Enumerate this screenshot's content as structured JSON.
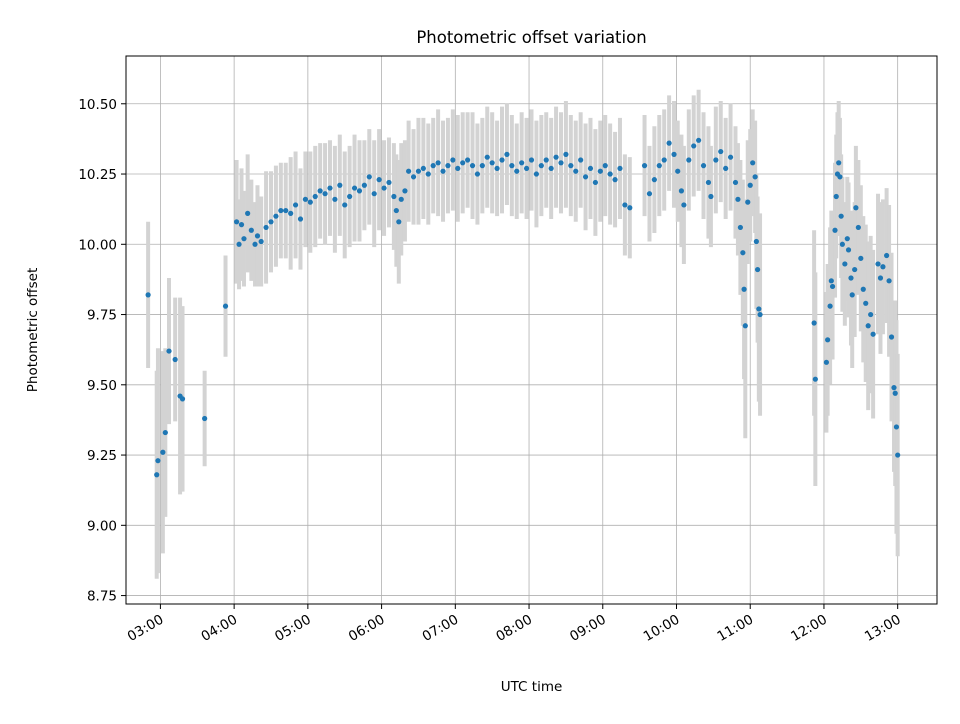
{
  "chart_data": {
    "type": "scatter",
    "title": "Photometric offset variation",
    "xlabel": "UTC time",
    "ylabel": "Photometric offset",
    "xlim": [
      "02:32",
      "13:32"
    ],
    "ylim": [
      8.72,
      10.67
    ],
    "yticks": [
      "8.75",
      "9.00",
      "9.25",
      "9.50",
      "9.75",
      "10.00",
      "10.25",
      "10.50"
    ],
    "xticks": [
      "03:00",
      "04:00",
      "05:00",
      "06:00",
      "07:00",
      "08:00",
      "09:00",
      "10:00",
      "11:00",
      "12:00",
      "13:00"
    ],
    "grid": true,
    "legend": "none",
    "marker_color": "#1f77b4",
    "errorbar_color": "#d3d3d3",
    "series": [
      {
        "points": [
          [
            "02:50",
            9.82,
            0.26
          ],
          [
            "02:57",
            9.18,
            0.37
          ],
          [
            "02:58",
            9.23,
            0.4
          ],
          [
            "03:02",
            9.26,
            0.36
          ],
          [
            "03:04",
            9.33,
            0.3
          ],
          [
            "03:07",
            9.62,
            0.26
          ],
          [
            "03:12",
            9.59,
            0.22
          ],
          [
            "03:16",
            9.46,
            0.35
          ],
          [
            "03:18",
            9.45,
            0.33
          ],
          [
            "03:36",
            9.38,
            0.17
          ],
          [
            "03:53",
            9.78,
            0.18
          ],
          [
            "04:02",
            10.08,
            0.22
          ],
          [
            "04:04",
            10.0,
            0.16
          ],
          [
            "04:06",
            10.07,
            0.2
          ],
          [
            "04:08",
            10.02,
            0.17
          ],
          [
            "04:11",
            10.11,
            0.21
          ],
          [
            "04:14",
            10.05,
            0.18
          ],
          [
            "04:17",
            10.0,
            0.15
          ],
          [
            "04:19",
            10.03,
            0.18
          ],
          [
            "04:22",
            10.01,
            0.16
          ],
          [
            "04:26",
            10.06,
            0.2
          ],
          [
            "04:30",
            10.08,
            0.18
          ],
          [
            "04:34",
            10.1,
            0.18
          ],
          [
            "04:38",
            10.12,
            0.17
          ],
          [
            "04:42",
            10.12,
            0.17
          ],
          [
            "04:46",
            10.11,
            0.2
          ],
          [
            "04:50",
            10.14,
            0.19
          ],
          [
            "04:54",
            10.09,
            0.18
          ],
          [
            "04:58",
            10.16,
            0.17
          ],
          [
            "05:02",
            10.15,
            0.18
          ],
          [
            "05:06",
            10.17,
            0.18
          ],
          [
            "05:10",
            10.19,
            0.17
          ],
          [
            "05:14",
            10.18,
            0.18
          ],
          [
            "05:18",
            10.2,
            0.17
          ],
          [
            "05:22",
            10.16,
            0.19
          ],
          [
            "05:26",
            10.21,
            0.18
          ],
          [
            "05:30",
            10.14,
            0.19
          ],
          [
            "05:34",
            10.17,
            0.18
          ],
          [
            "05:38",
            10.2,
            0.19
          ],
          [
            "05:42",
            10.19,
            0.18
          ],
          [
            "05:46",
            10.21,
            0.16
          ],
          [
            "05:50",
            10.24,
            0.17
          ],
          [
            "05:54",
            10.18,
            0.19
          ],
          [
            "05:58",
            10.23,
            0.18
          ],
          [
            "06:02",
            10.2,
            0.17
          ],
          [
            "06:06",
            10.22,
            0.16
          ],
          [
            "06:10",
            10.17,
            0.19
          ],
          [
            "06:12",
            10.12,
            0.2
          ],
          [
            "06:14",
            10.08,
            0.22
          ],
          [
            "06:16",
            10.16,
            0.2
          ],
          [
            "06:19",
            10.19,
            0.18
          ],
          [
            "06:22",
            10.26,
            0.18
          ],
          [
            "06:26",
            10.24,
            0.17
          ],
          [
            "06:30",
            10.26,
            0.19
          ],
          [
            "06:34",
            10.27,
            0.18
          ],
          [
            "06:38",
            10.25,
            0.18
          ],
          [
            "06:42",
            10.28,
            0.17
          ],
          [
            "06:46",
            10.29,
            0.19
          ],
          [
            "06:50",
            10.26,
            0.18
          ],
          [
            "06:54",
            10.28,
            0.17
          ],
          [
            "06:58",
            10.3,
            0.18
          ],
          [
            "07:02",
            10.27,
            0.19
          ],
          [
            "07:06",
            10.29,
            0.18
          ],
          [
            "07:10",
            10.3,
            0.17
          ],
          [
            "07:14",
            10.28,
            0.19
          ],
          [
            "07:18",
            10.25,
            0.18
          ],
          [
            "07:22",
            10.28,
            0.17
          ],
          [
            "07:26",
            10.31,
            0.18
          ],
          [
            "07:30",
            10.29,
            0.18
          ],
          [
            "07:34",
            10.27,
            0.17
          ],
          [
            "07:38",
            10.3,
            0.19
          ],
          [
            "07:42",
            10.32,
            0.18
          ],
          [
            "07:46",
            10.28,
            0.18
          ],
          [
            "07:50",
            10.26,
            0.17
          ],
          [
            "07:54",
            10.29,
            0.18
          ],
          [
            "07:58",
            10.27,
            0.18
          ],
          [
            "08:02",
            10.3,
            0.18
          ],
          [
            "08:06",
            10.25,
            0.19
          ],
          [
            "08:10",
            10.28,
            0.18
          ],
          [
            "08:14",
            10.3,
            0.17
          ],
          [
            "08:18",
            10.27,
            0.18
          ],
          [
            "08:22",
            10.31,
            0.18
          ],
          [
            "08:26",
            10.29,
            0.18
          ],
          [
            "08:30",
            10.32,
            0.19
          ],
          [
            "08:34",
            10.28,
            0.18
          ],
          [
            "08:38",
            10.26,
            0.18
          ],
          [
            "08:42",
            10.3,
            0.17
          ],
          [
            "08:46",
            10.24,
            0.19
          ],
          [
            "08:50",
            10.27,
            0.18
          ],
          [
            "08:54",
            10.22,
            0.19
          ],
          [
            "08:58",
            10.26,
            0.18
          ],
          [
            "09:02",
            10.28,
            0.18
          ],
          [
            "09:06",
            10.25,
            0.18
          ],
          [
            "09:10",
            10.23,
            0.17
          ],
          [
            "09:14",
            10.27,
            0.18
          ],
          [
            "09:18",
            10.14,
            0.18
          ],
          [
            "09:22",
            10.13,
            0.18
          ],
          [
            "09:34",
            10.28,
            0.18
          ],
          [
            "09:38",
            10.18,
            0.17
          ],
          [
            "09:42",
            10.23,
            0.19
          ],
          [
            "09:46",
            10.28,
            0.18
          ],
          [
            "09:50",
            10.3,
            0.18
          ],
          [
            "09:54",
            10.36,
            0.17
          ],
          [
            "09:58",
            10.32,
            0.19
          ],
          [
            "10:01",
            10.26,
            0.18
          ],
          [
            "10:04",
            10.19,
            0.2
          ],
          [
            "10:06",
            10.14,
            0.21
          ],
          [
            "10:10",
            10.3,
            0.18
          ],
          [
            "10:14",
            10.35,
            0.18
          ],
          [
            "10:18",
            10.37,
            0.18
          ],
          [
            "10:22",
            10.28,
            0.19
          ],
          [
            "10:26",
            10.22,
            0.2
          ],
          [
            "10:28",
            10.17,
            0.18
          ],
          [
            "10:32",
            10.3,
            0.19
          ],
          [
            "10:36",
            10.33,
            0.18
          ],
          [
            "10:40",
            10.27,
            0.18
          ],
          [
            "10:44",
            10.31,
            0.19
          ],
          [
            "10:48",
            10.22,
            0.2
          ],
          [
            "10:50",
            10.16,
            0.2
          ],
          [
            "10:52",
            10.06,
            0.24
          ],
          [
            "10:54",
            9.97,
            0.26
          ],
          [
            "10:55",
            9.84,
            0.32
          ],
          [
            "10:56",
            9.71,
            0.4
          ],
          [
            "10:58",
            10.15,
            0.22
          ],
          [
            "11:00",
            10.21,
            0.2
          ],
          [
            "11:02",
            10.29,
            0.19
          ],
          [
            "11:04",
            10.24,
            0.2
          ],
          [
            "11:05",
            10.01,
            0.24
          ],
          [
            "11:06",
            9.91,
            0.26
          ],
          [
            "11:07",
            9.77,
            0.33
          ],
          [
            "11:08",
            9.75,
            0.36
          ],
          [
            "11:52",
            9.72,
            0.33
          ],
          [
            "11:53",
            9.52,
            0.38
          ],
          [
            "12:02",
            9.58,
            0.25
          ],
          [
            "12:03",
            9.66,
            0.27
          ],
          [
            "12:05",
            9.78,
            0.28
          ],
          [
            "12:06",
            9.87,
            0.25
          ],
          [
            "12:07",
            9.85,
            0.26
          ],
          [
            "12:09",
            10.05,
            0.24
          ],
          [
            "12:10",
            10.17,
            0.22
          ],
          [
            "12:11",
            10.25,
            0.22
          ],
          [
            "12:12",
            10.29,
            0.22
          ],
          [
            "12:13",
            10.24,
            0.21
          ],
          [
            "12:14",
            10.1,
            0.22
          ],
          [
            "12:15",
            10.0,
            0.24
          ],
          [
            "12:17",
            9.93,
            0.22
          ],
          [
            "12:19",
            10.02,
            0.22
          ],
          [
            "12:20",
            9.98,
            0.24
          ],
          [
            "12:22",
            9.88,
            0.24
          ],
          [
            "12:23",
            9.82,
            0.26
          ],
          [
            "12:25",
            9.91,
            0.24
          ],
          [
            "12:26",
            10.13,
            0.22
          ],
          [
            "12:28",
            10.06,
            0.24
          ],
          [
            "12:30",
            9.95,
            0.26
          ],
          [
            "12:32",
            9.84,
            0.26
          ],
          [
            "12:34",
            9.79,
            0.28
          ],
          [
            "12:36",
            9.71,
            0.3
          ],
          [
            "12:38",
            9.75,
            0.28
          ],
          [
            "12:40",
            9.68,
            0.3
          ],
          [
            "12:44",
            9.93,
            0.25
          ],
          [
            "12:46",
            9.88,
            0.27
          ],
          [
            "12:48",
            9.92,
            0.24
          ],
          [
            "12:51",
            9.96,
            0.24
          ],
          [
            "12:53",
            9.87,
            0.27
          ],
          [
            "12:55",
            9.67,
            0.3
          ],
          [
            "12:57",
            9.49,
            0.3
          ],
          [
            "12:58",
            9.47,
            0.33
          ],
          [
            "12:59",
            9.35,
            0.38
          ],
          [
            "13:00",
            9.25,
            0.36
          ]
        ]
      }
    ]
  }
}
